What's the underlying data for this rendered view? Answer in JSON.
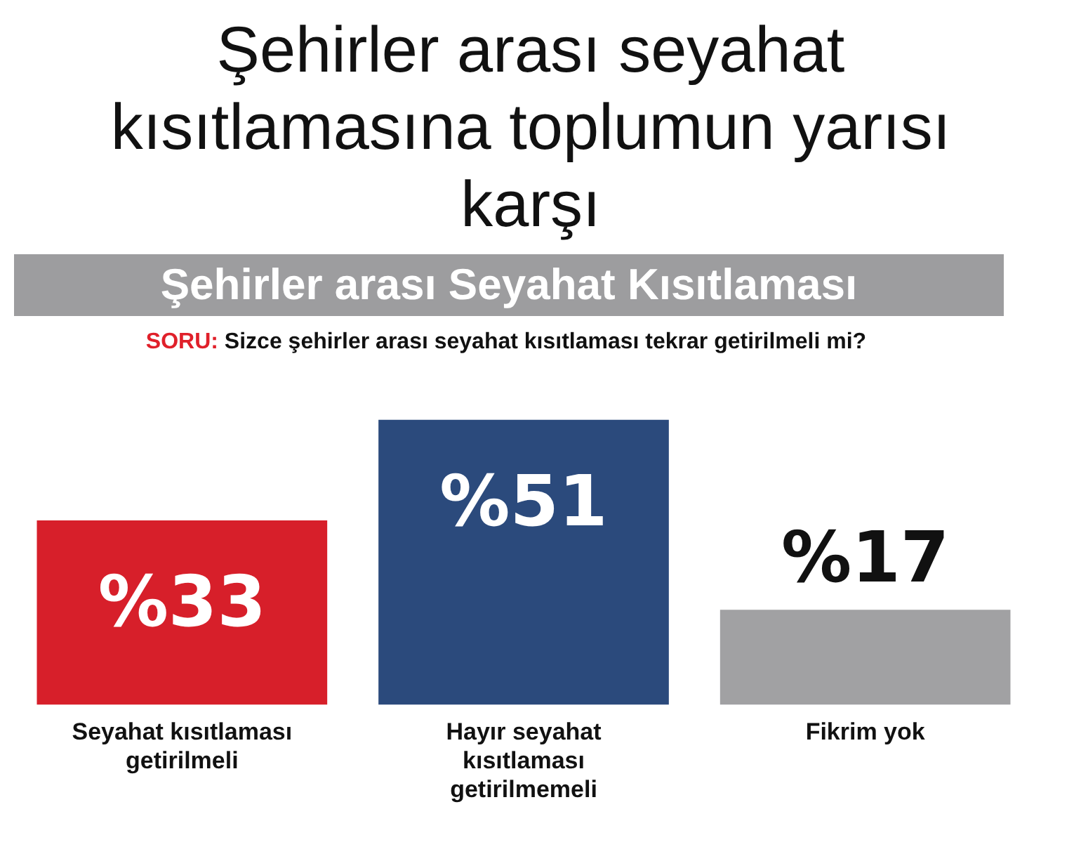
{
  "chart_data": {
    "type": "bar",
    "title": "Şehirler arası seyahat kısıtlamasına toplumun yarısı karşı",
    "subtitle": "Şehirler arası Seyahat Kısıtlaması",
    "annotations": [
      "SORU: Sizce şehirler arası seyahat kısıtlaması tekrar getirilmeli mi?"
    ],
    "categories": [
      "Seyahat kısıtlaması getirilmeli",
      "Hayır seyahat kısıtlaması getirilmemeli",
      "Fikrim yok"
    ],
    "values": [
      33,
      51,
      17
    ],
    "colors": [
      "#d71f2a",
      "#2b4a7c",
      "#a1a1a3"
    ],
    "value_labels": [
      "%33",
      "%51",
      "%17"
    ],
    "grid": false,
    "legend": false
  }
}
